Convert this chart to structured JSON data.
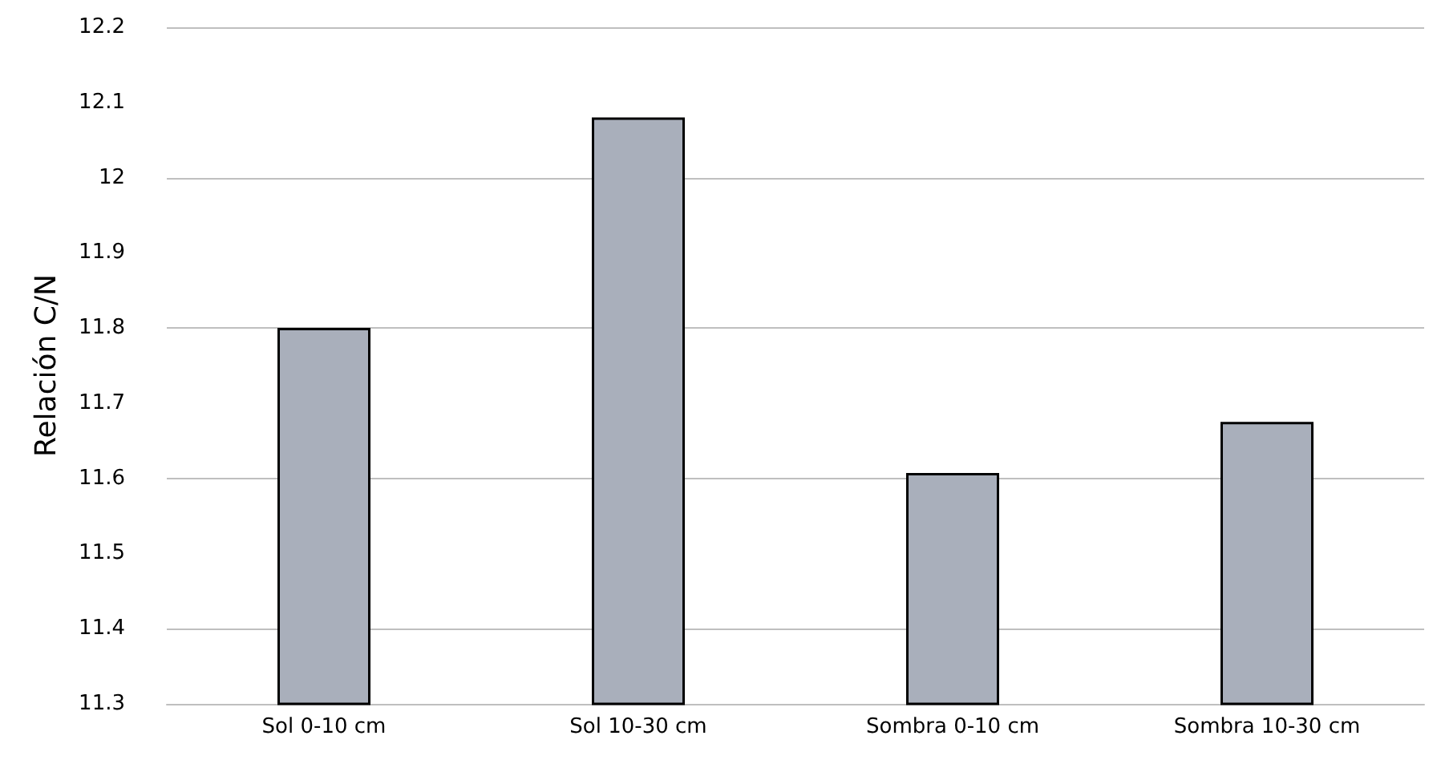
{
  "chart_data": {
    "type": "bar",
    "ylabel": "Relación C/N",
    "categories": [
      "Sol 0-10 cm",
      "Sol 10-30 cm",
      "Sombra 0-10 cm",
      "Sombra 10-30 cm"
    ],
    "values": [
      11.8,
      12.08,
      11.607,
      11.675
    ],
    "color": "#a9afbb",
    "ylim": [
      11.3,
      12.2
    ],
    "yticks": [
      11.3,
      11.4,
      11.5,
      11.6,
      11.7,
      11.8,
      11.9,
      12,
      12.1,
      12.2
    ],
    "grid": "y"
  }
}
